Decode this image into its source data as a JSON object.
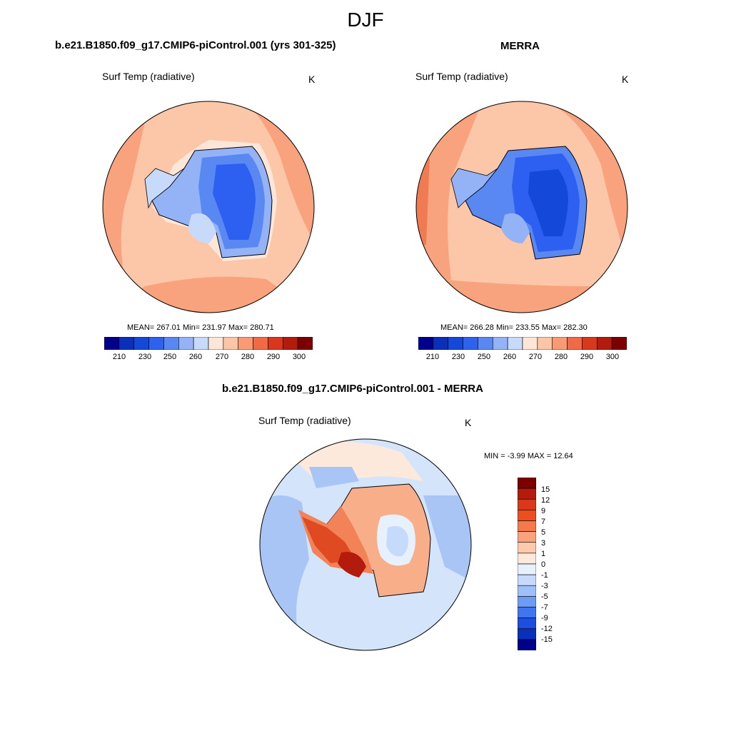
{
  "title": "DJF",
  "panels": {
    "model": {
      "title": "b.e21.B1850.f09_g17.CMIP6-piControl.001 (yrs 301-325)",
      "variable": "Surf Temp (radiative)",
      "units": "K",
      "stats": "MEAN= 267.01  Min= 231.97  Max= 280.71"
    },
    "obs": {
      "title": "MERRA",
      "variable": "Surf Temp (radiative)",
      "units": "K",
      "stats": "MEAN= 266.28  Min= 233.55  Max= 282.30"
    },
    "diff": {
      "title": "b.e21.B1850.f09_g17.CMIP6-piControl.001 - MERRA",
      "variable": "Surf Temp (radiative)",
      "units": "K",
      "stats": "MIN =  -3.99 MAX =  12.64"
    }
  },
  "abs_colorbar": {
    "labels": [
      "210",
      "230",
      "250",
      "260",
      "270",
      "280",
      "290",
      "300"
    ],
    "colors": [
      "#00008b",
      "#0a2fb8",
      "#1448d9",
      "#2d62ee",
      "#5a88f2",
      "#93b3f6",
      "#c8dafa",
      "#fde6d8",
      "#fbc6a8",
      "#f89a74",
      "#f06a45",
      "#d8391d",
      "#b31c0c",
      "#7d0000"
    ]
  },
  "diff_colorbar": {
    "labels": [
      "15",
      "12",
      "9",
      "7",
      "5",
      "3",
      "1",
      "0",
      "-1",
      "-3",
      "-5",
      "-7",
      "-9",
      "-12",
      "-15"
    ],
    "colors": [
      "#7d0000",
      "#b31c0c",
      "#d8391d",
      "#ee4e1e",
      "#f5794c",
      "#f9a37e",
      "#fbc9ac",
      "#fde9dc",
      "#e7f0fd",
      "#c6dafb",
      "#9fbff7",
      "#6f9cf3",
      "#3f76ef",
      "#1c4ee2",
      "#0a2fb8",
      "#00008b"
    ]
  },
  "legend_colors": {
    "ocean_model": "#fcc7a8",
    "ocean_mid": "#f9a37e",
    "ocean_warm": "#f7936a",
    "land_cold": "#2d5ff0",
    "land_mid": "#5a88f2",
    "land_light": "#93b3f6",
    "peninsula": "#c8dafa",
    "diff_ocean": "#d4e4fb",
    "diff_ocean_blue": "#a9c5f6",
    "diff_land_warm": "#f28358",
    "diff_land_hot": "#e04a22",
    "diff_land_light": "#f9ae8a"
  }
}
